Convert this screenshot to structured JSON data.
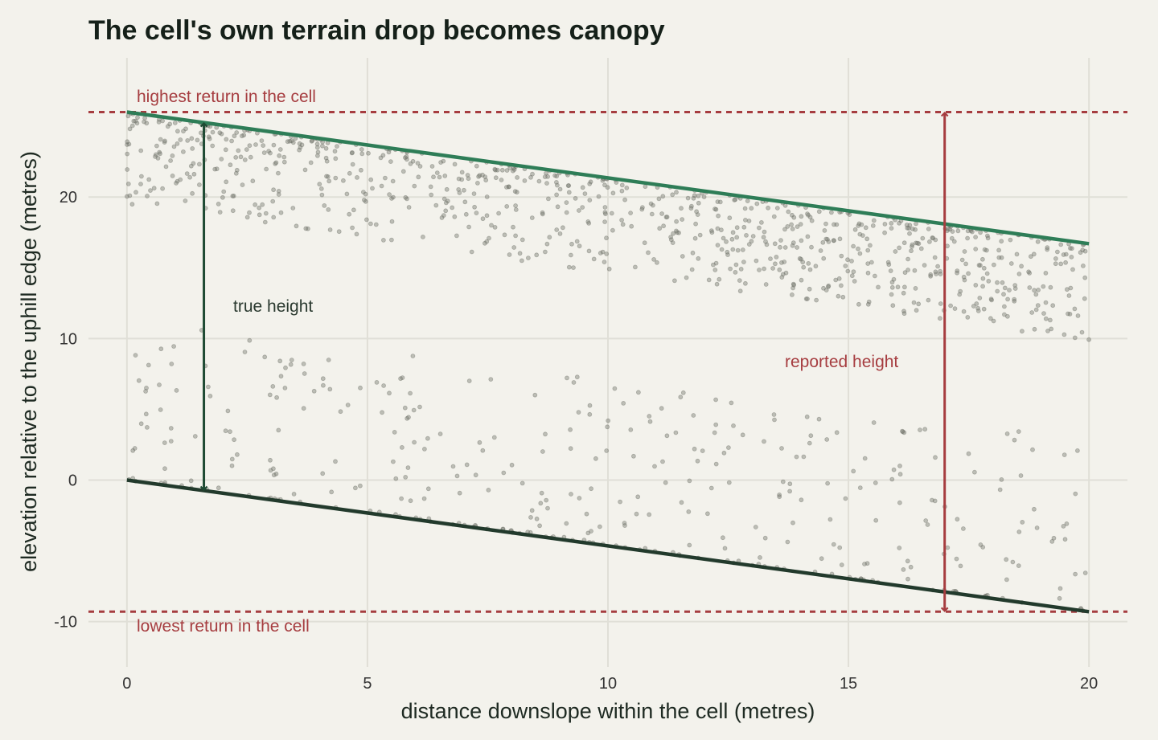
{
  "chart_data": {
    "type": "scatter",
    "title": "The cell's own terrain drop becomes canopy",
    "xlabel": "distance downslope within the cell (metres)",
    "ylabel": "elevation relative to the uphill edge (metres)",
    "xlim": [
      -0.8,
      20.8
    ],
    "ylim": [
      -13.2,
      30.4
    ],
    "x_ticks": [
      0,
      5,
      10,
      15,
      20
    ],
    "x_tick_labels": [
      "0",
      "5",
      "10",
      "15",
      "20"
    ],
    "y_ticks": [
      -10,
      0,
      10,
      20
    ],
    "y_tick_labels": [
      "-10",
      "0",
      "10",
      "20"
    ],
    "grid": true,
    "legend": "none",
    "lines": [
      {
        "role": "canopy-top",
        "x": [
          0,
          20
        ],
        "y": [
          26.0,
          16.7
        ],
        "color": "#2e7d57"
      },
      {
        "role": "ground",
        "x": [
          0,
          20
        ],
        "y": [
          0,
          -9.3
        ],
        "color": "#223a2c"
      }
    ],
    "reference_lines": [
      {
        "y": 26.0,
        "label": "highest return in the cell",
        "color": "#a63d40"
      },
      {
        "y": -9.3,
        "label": "lowest return in the cell",
        "color": "#a63d40"
      }
    ],
    "measurements": [
      {
        "x": 1.6,
        "y_from": -0.74,
        "y_to": 25.26,
        "label": "true height",
        "color": "#1e4a33"
      },
      {
        "x": 17.0,
        "y_from": -9.3,
        "y_to": 26.0,
        "label": "reported height",
        "color": "#a63d40"
      }
    ],
    "point_color": "#7a7c74",
    "series": [
      {
        "n_canopy_returns": 900,
        "n_understory_returns": 280,
        "n_ground_returns": 90
      }
    ]
  }
}
